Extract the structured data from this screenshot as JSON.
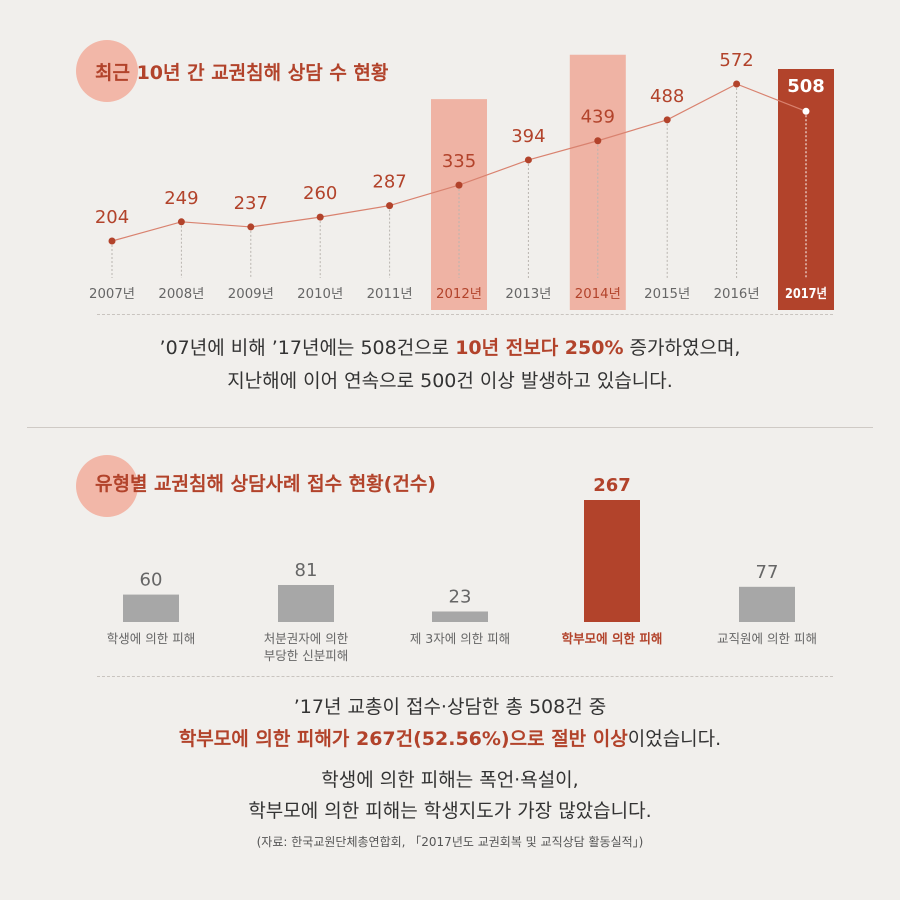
{
  "chart_data": [
    {
      "type": "line",
      "title": "최근 10년 간 교권침해 상담 수 현황",
      "categories": [
        "2007년",
        "2008년",
        "2009년",
        "2010년",
        "2011년",
        "2012년",
        "2013년",
        "2014년",
        "2015년",
        "2016년",
        "2017년"
      ],
      "values": [
        204,
        249,
        237,
        260,
        287,
        335,
        394,
        439,
        488,
        572,
        508
      ],
      "highlighted_categories": [
        "2012년",
        "2014년",
        "2017년"
      ],
      "emphasized_category": "2017년",
      "ylim": [
        150,
        600
      ],
      "grid": false,
      "legend": "none"
    },
    {
      "type": "bar",
      "title": "유형별 교권침해 상담사례 접수 현황(건수)",
      "categories": [
        "학생에 의한 피해",
        "처분권자에 의한\n부당한 신분피해",
        "제 3자에 의한 피해",
        "학부모에 의한 피해",
        "교직원에 의한 피해"
      ],
      "values": [
        60,
        81,
        23,
        267,
        77
      ],
      "highlighted_category": "학부모에 의한 피해",
      "ylim": [
        0,
        267
      ],
      "grid": false,
      "legend": "none"
    }
  ],
  "summary1": {
    "line1_part1": "’07년에 비해 ’17년에는 508건으로 ",
    "line1_highlight": "10년 전보다 250%",
    "line1_part2": " 증가하였으며,",
    "line2": "지난해에 이어 연속으로 500건 이상 발생하고 있습니다."
  },
  "summary2": {
    "line1": "’17년 교총이 접수·상담한 총 508건 중",
    "line2_highlight": "학부모에 의한 피해가 267건(52.56%)으로 절반 이상",
    "line2_part2": "이었습니다.",
    "line3": "학생에 의한 피해는 폭언·욕설이,",
    "line4": "학부모에 의한 피해는 학생지도가 가장 많았습니다.",
    "source": "(자료: 한국교원단체총연합회, 「2017년도 교권회복 및 교직상담 활동실적」)"
  },
  "colors": {
    "accent": "#b2432b",
    "highlight_bg": "#efb3a4",
    "circle": "#f2b7a8",
    "bar_gray": "#a7a7a7",
    "text_gray": "#666666"
  }
}
